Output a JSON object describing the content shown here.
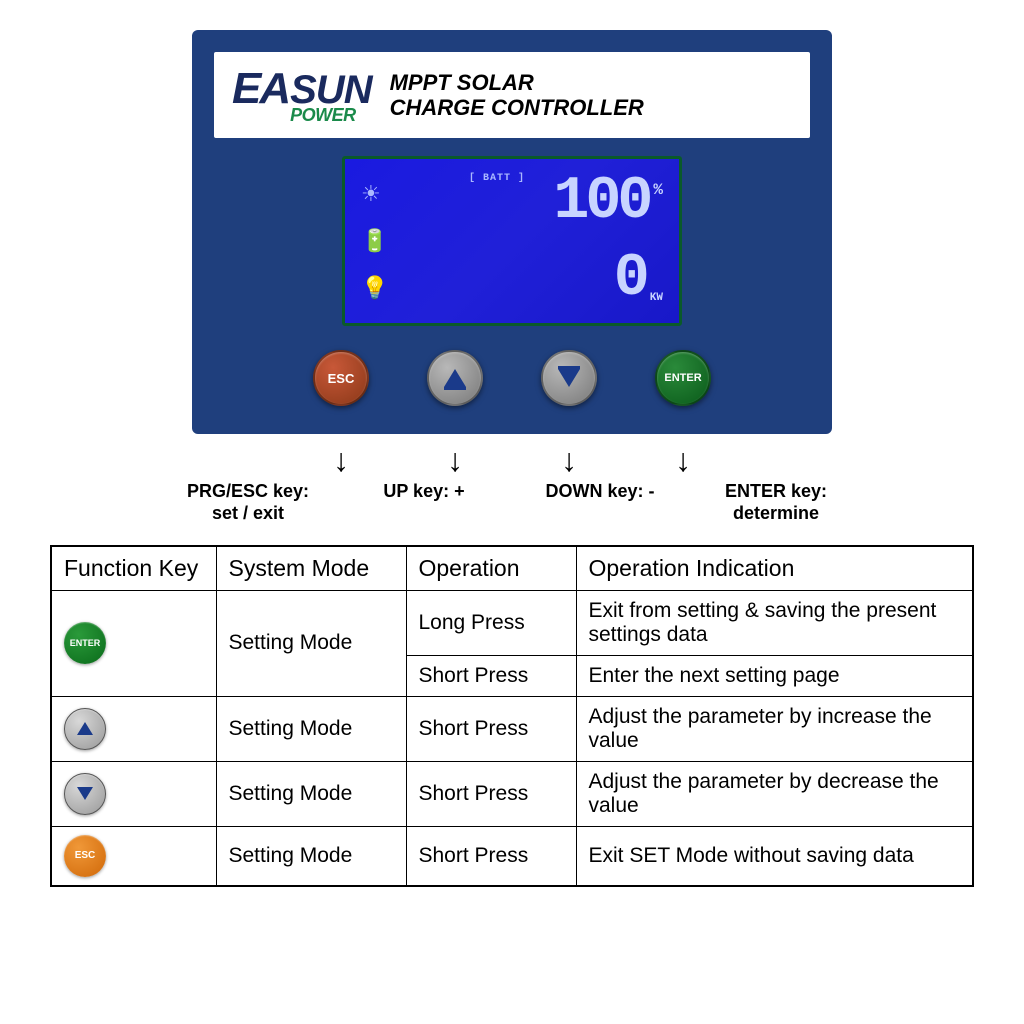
{
  "colors": {
    "device_body": "#1f3f7d",
    "lcd_bg": "#1a1ae0",
    "lcd_border": "#0a5a2a",
    "lcd_text": "#c8d4ff",
    "logo_blue": "#1a2a5e",
    "logo_green": "#1a8a4a",
    "esc_btn": "#8a3818",
    "enter_btn": "#0a5a1a",
    "arrow_btn": "#787878",
    "mini_esc": "#d06808"
  },
  "logo": {
    "brand_prefix": "EA",
    "brand_suffix": "SUN",
    "brand_sub": "POWER"
  },
  "product": {
    "line1": "MPPT SOLAR",
    "line2": "CHARGE CONTROLLER"
  },
  "lcd": {
    "batt_label": "[ BATT ]",
    "value_top": "100",
    "unit_top": "%",
    "value_bottom": "0",
    "unit_bottom": "KW"
  },
  "buttons": {
    "esc": "ESC",
    "enter": "ENTER"
  },
  "key_labels": {
    "esc": {
      "title": "PRG/ESC key:",
      "sub": "set / exit"
    },
    "up": {
      "title": "UP key: +"
    },
    "down": {
      "title": "DOWN key: -"
    },
    "enter": {
      "title": "ENTER key:",
      "sub": "determine"
    }
  },
  "table": {
    "headers": [
      "Function Key",
      "System Mode",
      "Operation",
      "Operation Indication"
    ],
    "rows": [
      {
        "key": "enter",
        "key_label": "ENTER",
        "mode": "Setting Mode",
        "op": "Long Press",
        "desc": "Exit from setting & saving the present settings data",
        "rowspan_key": 2,
        "rowspan_mode": 2
      },
      {
        "key": "enter",
        "mode": "Setting Mode",
        "op": "Short Press",
        "desc": "Enter the next setting page"
      },
      {
        "key": "up",
        "mode": "Setting Mode",
        "op": "Short Press",
        "desc": "Adjust the parameter by increase the value"
      },
      {
        "key": "down",
        "mode": "Setting Mode",
        "op": "Short Press",
        "desc": "Adjust the parameter by decrease the value"
      },
      {
        "key": "esc",
        "key_label": "ESC",
        "mode": "Setting Mode",
        "op": "Short Press",
        "desc": "Exit SET Mode without saving data"
      }
    ]
  }
}
